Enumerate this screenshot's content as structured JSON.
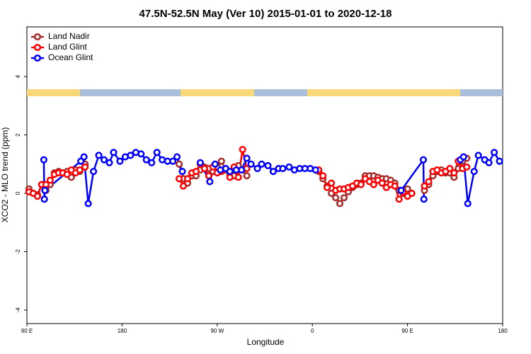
{
  "chart_data": {
    "type": "line",
    "title": "47.5N-52.5N May (Ver 10)   2015-01-01 to 2020-12-18",
    "xlabel": "Longitude",
    "ylabel": "XCO2 - MLO trend (ppm)",
    "xlim": [
      90,
      540
    ],
    "ylim": [
      -4.46,
      5.7
    ],
    "xticks": [
      {
        "value": 90,
        "label": "90 E"
      },
      180,
      {
        "value": 270,
        "label": "90 W"
      },
      {
        "value": 360,
        "label": "0"
      },
      {
        "value": 450,
        "label": "90 E"
      },
      {
        "value": 540,
        "label": "180"
      }
    ],
    "yticks": [
      -4,
      -2,
      0,
      2,
      4
    ],
    "legend": "top-left",
    "series": [
      {
        "name": "Land Nadir",
        "color": "#a52a2a",
        "x": [
          92,
          96,
          100,
          104,
          108,
          112,
          116,
          120,
          124,
          128,
          132,
          136,
          140,
          145,
          190,
          234,
          238,
          242,
          246,
          250,
          254,
          258,
          262,
          266,
          270,
          274,
          278,
          282,
          286,
          290,
          294,
          298,
          330,
          366,
          370,
          374,
          378,
          382,
          386,
          390,
          394,
          398,
          402,
          406,
          410,
          414,
          418,
          422,
          426,
          430,
          434,
          438,
          442,
          446,
          450,
          454,
          460,
          466,
          470,
          474,
          478,
          482,
          486,
          490,
          494,
          498,
          502,
          506
        ],
        "values": [
          0.15,
          0.0,
          -0.05,
          0.3,
          0.1,
          0.3,
          0.7,
          0.75,
          0.7,
          0.75,
          0.55,
          0.8,
          0.75,
          1.0,
          null,
          1.0,
          0.5,
          0.35,
          0.6,
          0.6,
          0.8,
          0.9,
          0.85,
          0.75,
          0.9,
          1.1,
          0.8,
          0.65,
          0.6,
          0.95,
          0.8,
          0.6,
          null,
          0.75,
          0.5,
          0.25,
          0.0,
          -0.15,
          -0.35,
          -0.15,
          0.05,
          0.2,
          0.3,
          0.35,
          0.6,
          0.6,
          0.6,
          0.55,
          0.5,
          0.5,
          0.45,
          0.35,
          0.1,
          0.0,
          0.15,
          0.0,
          null,
          0.1,
          0.3,
          0.6,
          0.75,
          0.8,
          0.7,
          0.7,
          0.55,
          0.85,
          1.1,
          1.2
        ]
      },
      {
        "name": "Land Glint",
        "color": "#ff0000",
        "x": [
          92,
          96,
          100,
          104,
          108,
          112,
          116,
          120,
          124,
          128,
          132,
          136,
          140,
          145,
          190,
          234,
          238,
          242,
          246,
          250,
          254,
          258,
          262,
          266,
          270,
          274,
          278,
          282,
          286,
          290,
          294,
          298,
          330,
          366,
          370,
          374,
          378,
          382,
          386,
          390,
          394,
          398,
          402,
          406,
          410,
          414,
          418,
          422,
          426,
          430,
          434,
          438,
          442,
          446,
          450,
          454,
          460,
          466,
          470,
          474,
          478,
          482,
          486,
          490,
          494,
          498,
          502,
          506
        ],
        "values": [
          0.05,
          0.0,
          -0.1,
          0.3,
          0.3,
          0.45,
          0.65,
          0.7,
          0.7,
          0.65,
          0.8,
          0.7,
          0.8,
          0.9,
          null,
          0.5,
          0.25,
          0.5,
          0.7,
          0.75,
          1.0,
          0.85,
          0.6,
          0.9,
          0.7,
          0.75,
          0.85,
          0.55,
          0.9,
          0.55,
          1.5,
          0.85,
          null,
          0.8,
          0.6,
          0.2,
          0.35,
          0.1,
          0.15,
          0.15,
          0.2,
          0.25,
          0.35,
          0.3,
          0.5,
          0.4,
          0.3,
          0.45,
          0.35,
          0.2,
          0.3,
          0.25,
          -0.2,
          0.05,
          -0.1,
          0.0,
          null,
          0.25,
          0.4,
          0.75,
          0.8,
          0.7,
          0.75,
          0.85,
          0.7,
          1.1,
          0.85,
          0.9
        ]
      },
      {
        "name": "Ocean Glint",
        "color": "#0000ff",
        "x": [
          106,
          106.5,
          107,
          141,
          144,
          148,
          153,
          158,
          163,
          168,
          172,
          178,
          183,
          188,
          193,
          198,
          203,
          208,
          213,
          218,
          223,
          228,
          232,
          237,
          250,
          254,
          263,
          268,
          273,
          278,
          282,
          288,
          293,
          298,
          302,
          308,
          312,
          318,
          323,
          328,
          332,
          338,
          343,
          348,
          353,
          358,
          363,
          400,
          444,
          465,
          465.5,
          480,
          500,
          503,
          507,
          513,
          517,
          523,
          527,
          532,
          537
        ],
        "values": [
          1.15,
          -0.2,
          0.1,
          1.1,
          1.25,
          -0.35,
          0.75,
          1.3,
          1.15,
          1.05,
          1.4,
          1.1,
          1.25,
          1.3,
          1.4,
          1.35,
          1.15,
          1.05,
          1.4,
          1.15,
          1.1,
          1.1,
          1.25,
          0.75,
          null,
          1.05,
          0.4,
          1.0,
          0.8,
          0.85,
          0.75,
          0.8,
          0.8,
          1.2,
          1.0,
          0.85,
          1.0,
          0.95,
          0.75,
          0.85,
          0.85,
          0.9,
          0.8,
          0.85,
          0.85,
          0.85,
          0.8,
          null,
          0.1,
          1.15,
          -0.2,
          null,
          1.15,
          1.25,
          -0.35,
          0.75,
          1.3,
          1.15,
          1.05,
          1.4,
          1.1
        ]
      }
    ]
  }
}
